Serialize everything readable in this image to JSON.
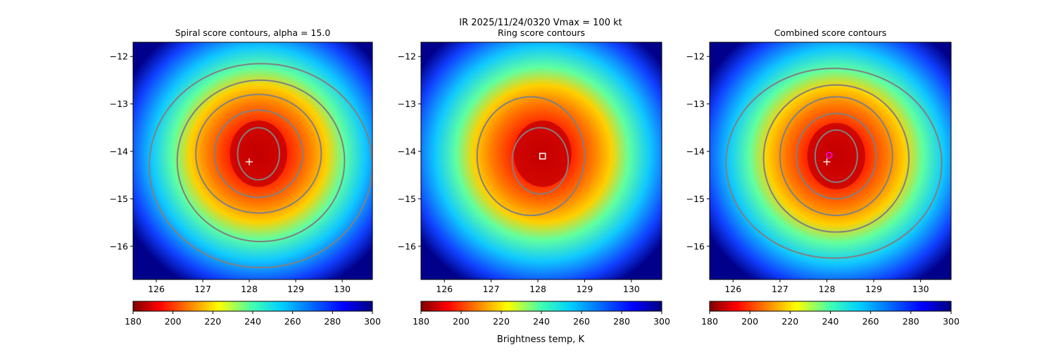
{
  "figure": {
    "suptitle": "IR  2025/11/24/0320    Vmax = 100 kt",
    "colorbar_label": "Brightness temp, K"
  },
  "chart_data": [
    {
      "type": "heatmap",
      "title": "Spiral score contours, alpha = 15.0",
      "xlim": [
        125.5,
        130.65
      ],
      "ylim": [
        -16.7,
        -11.7
      ],
      "xticks": [
        126,
        127,
        128,
        129,
        130
      ],
      "yticks": [
        -12,
        -13,
        -14,
        -15,
        -16
      ],
      "colormap": "jet",
      "colorbar": {
        "range": [
          180,
          300
        ],
        "ticks": [
          180,
          200,
          220,
          240,
          260,
          280,
          300
        ]
      },
      "storm_center": [
        128.2,
        -14.05
      ],
      "markers": [
        {
          "kind": "plus",
          "color": "#ffffff",
          "lon": 128.0,
          "lat": -14.22
        }
      ],
      "contour_color": "#808080",
      "contours": [
        {
          "cx": 128.2,
          "cy": -14.05,
          "rx": 0.45,
          "ry": 0.55
        },
        {
          "cx": 128.2,
          "cy": -14.05,
          "rx": 0.95,
          "ry": 0.92
        },
        {
          "cx": 128.2,
          "cy": -14.05,
          "rx": 1.35,
          "ry": 1.25
        },
        {
          "cx": 128.25,
          "cy": -14.2,
          "rx": 1.8,
          "ry": 1.7
        },
        {
          "cx": 128.25,
          "cy": -14.3,
          "rx": 2.4,
          "ry": 2.15
        }
      ]
    },
    {
      "type": "heatmap",
      "title": "Ring score contours",
      "xlim": [
        125.5,
        130.65
      ],
      "ylim": [
        -16.7,
        -11.7
      ],
      "xticks": [
        126,
        127,
        128,
        129,
        130
      ],
      "yticks": [
        -12,
        -13,
        -14,
        -15,
        -16
      ],
      "colormap": "jet",
      "colorbar": {
        "range": [
          180,
          300
        ],
        "ticks": [
          180,
          200,
          220,
          240,
          260,
          280,
          300
        ]
      },
      "storm_center": [
        128.1,
        -14.05
      ],
      "markers": [
        {
          "kind": "square",
          "color": "#ffffff",
          "lon": 128.1,
          "lat": -14.1
        }
      ],
      "contour_color": "#808080",
      "contours": [
        {
          "cx": 128.05,
          "cy": -14.2,
          "rx": 0.6,
          "ry": 0.7
        },
        {
          "cx": 127.85,
          "cy": -14.1,
          "rx": 1.15,
          "ry": 1.25
        }
      ]
    },
    {
      "type": "heatmap",
      "title": "Combined score contours",
      "xlim": [
        125.5,
        130.65
      ],
      "ylim": [
        -16.7,
        -11.7
      ],
      "xticks": [
        126,
        127,
        128,
        129,
        130
      ],
      "yticks": [
        -12,
        -13,
        -14,
        -15,
        -16
      ],
      "colormap": "jet",
      "colorbar": {
        "range": [
          180,
          300
        ],
        "ticks": [
          180,
          200,
          220,
          240,
          260,
          280,
          300
        ]
      },
      "storm_center": [
        128.2,
        -14.1
      ],
      "markers": [
        {
          "kind": "plus",
          "color": "#ffffff",
          "lon": 128.0,
          "lat": -14.22
        },
        {
          "kind": "circle",
          "color": "#ff00ff",
          "lon": 128.05,
          "lat": -14.08
        }
      ],
      "contour_color": "#808080",
      "contours": [
        {
          "cx": 128.2,
          "cy": -14.1,
          "rx": 0.45,
          "ry": 0.55
        },
        {
          "cx": 128.2,
          "cy": -14.1,
          "rx": 0.85,
          "ry": 0.9
        },
        {
          "cx": 128.2,
          "cy": -14.1,
          "rx": 1.2,
          "ry": 1.25
        },
        {
          "cx": 128.2,
          "cy": -14.15,
          "rx": 1.55,
          "ry": 1.55
        },
        {
          "cx": 128.15,
          "cy": -14.25,
          "rx": 2.3,
          "ry": 2.0
        }
      ]
    }
  ]
}
